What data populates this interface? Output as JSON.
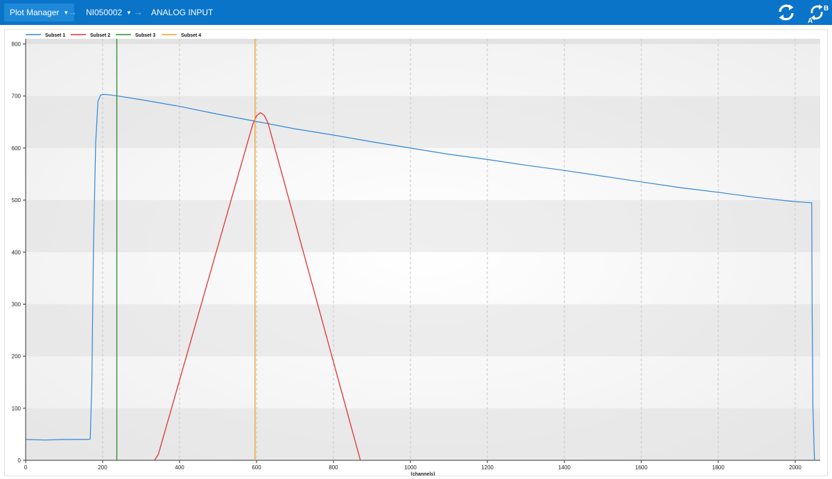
{
  "breadcrumb": [
    {
      "label": "Plot Manager"
    },
    {
      "label": "NI050002"
    },
    {
      "label": "ANALOG INPUT"
    }
  ],
  "icons": {
    "refresh": "refresh-icon",
    "swap": "swap-ab-icon",
    "swap_label_a": "A",
    "swap_label_b": "B"
  },
  "colors": {
    "bar": "#0a74c9",
    "crumb_active": "#1d87d8"
  },
  "chart_data": {
    "type": "line",
    "xlabel": "(channels)",
    "ylabel": "",
    "xlim": [
      0,
      2065
    ],
    "ylim": [
      0,
      810
    ],
    "xticks": [
      0,
      200,
      400,
      600,
      800,
      1000,
      1200,
      1400,
      1600,
      1800,
      2000
    ],
    "yticks": [
      0,
      100,
      200,
      300,
      400,
      500,
      600,
      700,
      800
    ],
    "grid": true,
    "legend_position": "top-left",
    "series": [
      {
        "name": "Subset 1",
        "color": "#2f86d8",
        "x": [
          0,
          50,
          100,
          160,
          168,
          172,
          176,
          182,
          188,
          195,
          205,
          220,
          240,
          300,
          400,
          500,
          600,
          700,
          800,
          900,
          1000,
          1100,
          1200,
          1300,
          1400,
          1500,
          1600,
          1700,
          1800,
          1900,
          2000,
          2040,
          2043,
          2044,
          2046,
          2050
        ],
        "y": [
          40,
          39,
          40,
          40,
          41,
          150,
          400,
          610,
          690,
          702,
          703,
          702,
          700,
          693,
          680,
          665,
          651,
          637,
          625,
          612,
          600,
          588,
          578,
          567,
          557,
          546,
          535,
          524,
          515,
          505,
          497,
          495,
          495,
          300,
          100,
          0
        ]
      },
      {
        "name": "Subset 2",
        "color": "#e33030",
        "x": [
          335,
          345,
          590,
          600,
          610,
          620,
          630,
          870
        ],
        "y": [
          0,
          12,
          645,
          662,
          668,
          663,
          648,
          0
        ]
      },
      {
        "name": "Subset 3",
        "color": "#2a8a2a",
        "x": [
          237,
          237
        ],
        "y": [
          0,
          810
        ]
      },
      {
        "name": "Subset 4",
        "color": "#f0a020",
        "x": [
          596,
          596
        ],
        "y": [
          0,
          810
        ]
      }
    ]
  }
}
